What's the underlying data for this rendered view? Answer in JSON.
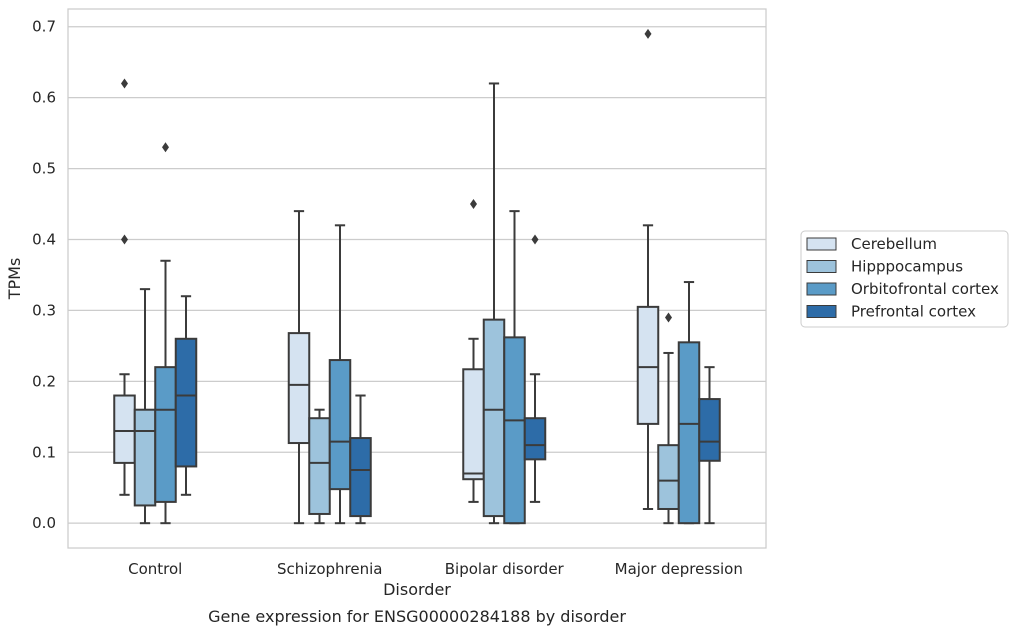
{
  "chart_data": {
    "type": "box",
    "caption": "Gene expression for ENSG00000284188 by disorder",
    "xlabel": "Disorder",
    "ylabel": "TPMs",
    "ylim": [
      -0.035,
      0.725
    ],
    "yticks": [
      "0.0",
      "0.1",
      "0.2",
      "0.3",
      "0.4",
      "0.5",
      "0.6",
      "0.7"
    ],
    "grid": "horizontal",
    "legend_position": "right",
    "categories": [
      "Control",
      "Schizophrenia",
      "Bipolar disorder",
      "Major depression"
    ],
    "series": [
      {
        "name": "Cerebellum",
        "color": "#d5e3f1",
        "boxes": [
          {
            "whisker_low": 0.04,
            "q1": 0.085,
            "median": 0.13,
            "q3": 0.18,
            "whisker_high": 0.21,
            "outliers": [
              0.4,
              0.62
            ]
          },
          {
            "whisker_low": 0.0,
            "q1": 0.113,
            "median": 0.195,
            "q3": 0.268,
            "whisker_high": 0.44,
            "outliers": []
          },
          {
            "whisker_low": 0.03,
            "q1": 0.062,
            "median": 0.07,
            "q3": 0.217,
            "whisker_high": 0.26,
            "outliers": [
              0.45
            ]
          },
          {
            "whisker_low": 0.02,
            "q1": 0.14,
            "median": 0.22,
            "q3": 0.305,
            "whisker_high": 0.42,
            "outliers": [
              0.69
            ]
          }
        ]
      },
      {
        "name": "Hipppocampus",
        "color": "#9dc3dc",
        "boxes": [
          {
            "whisker_low": 0.0,
            "q1": 0.025,
            "median": 0.13,
            "q3": 0.16,
            "whisker_high": 0.33,
            "outliers": []
          },
          {
            "whisker_low": 0.0,
            "q1": 0.013,
            "median": 0.085,
            "q3": 0.148,
            "whisker_high": 0.16,
            "outliers": []
          },
          {
            "whisker_low": 0.0,
            "q1": 0.01,
            "median": 0.16,
            "q3": 0.287,
            "whisker_high": 0.62,
            "outliers": []
          },
          {
            "whisker_low": 0.0,
            "q1": 0.02,
            "median": 0.06,
            "q3": 0.11,
            "whisker_high": 0.24,
            "outliers": [
              0.29
            ]
          }
        ]
      },
      {
        "name": "Orbitofrontal cortex",
        "color": "#5a9bc7",
        "boxes": [
          {
            "whisker_low": 0.0,
            "q1": 0.03,
            "median": 0.16,
            "q3": 0.22,
            "whisker_high": 0.37,
            "outliers": [
              0.53
            ]
          },
          {
            "whisker_low": 0.0,
            "q1": 0.048,
            "median": 0.115,
            "q3": 0.23,
            "whisker_high": 0.42,
            "outliers": []
          },
          {
            "whisker_low": 0.0,
            "q1": 0.0,
            "median": 0.145,
            "q3": 0.262,
            "whisker_high": 0.44,
            "outliers": []
          },
          {
            "whisker_low": 0.0,
            "q1": 0.0,
            "median": 0.14,
            "q3": 0.255,
            "whisker_high": 0.34,
            "outliers": []
          }
        ]
      },
      {
        "name": "Prefrontal cortex",
        "color": "#2d6ca8",
        "boxes": [
          {
            "whisker_low": 0.04,
            "q1": 0.08,
            "median": 0.18,
            "q3": 0.26,
            "whisker_high": 0.32,
            "outliers": []
          },
          {
            "whisker_low": 0.0,
            "q1": 0.01,
            "median": 0.075,
            "q3": 0.12,
            "whisker_high": 0.18,
            "outliers": []
          },
          {
            "whisker_low": 0.03,
            "q1": 0.09,
            "median": 0.11,
            "q3": 0.148,
            "whisker_high": 0.21,
            "outliers": [
              0.4
            ]
          },
          {
            "whisker_low": 0.0,
            "q1": 0.088,
            "median": 0.115,
            "q3": 0.175,
            "whisker_high": 0.22,
            "outliers": []
          }
        ]
      }
    ]
  }
}
